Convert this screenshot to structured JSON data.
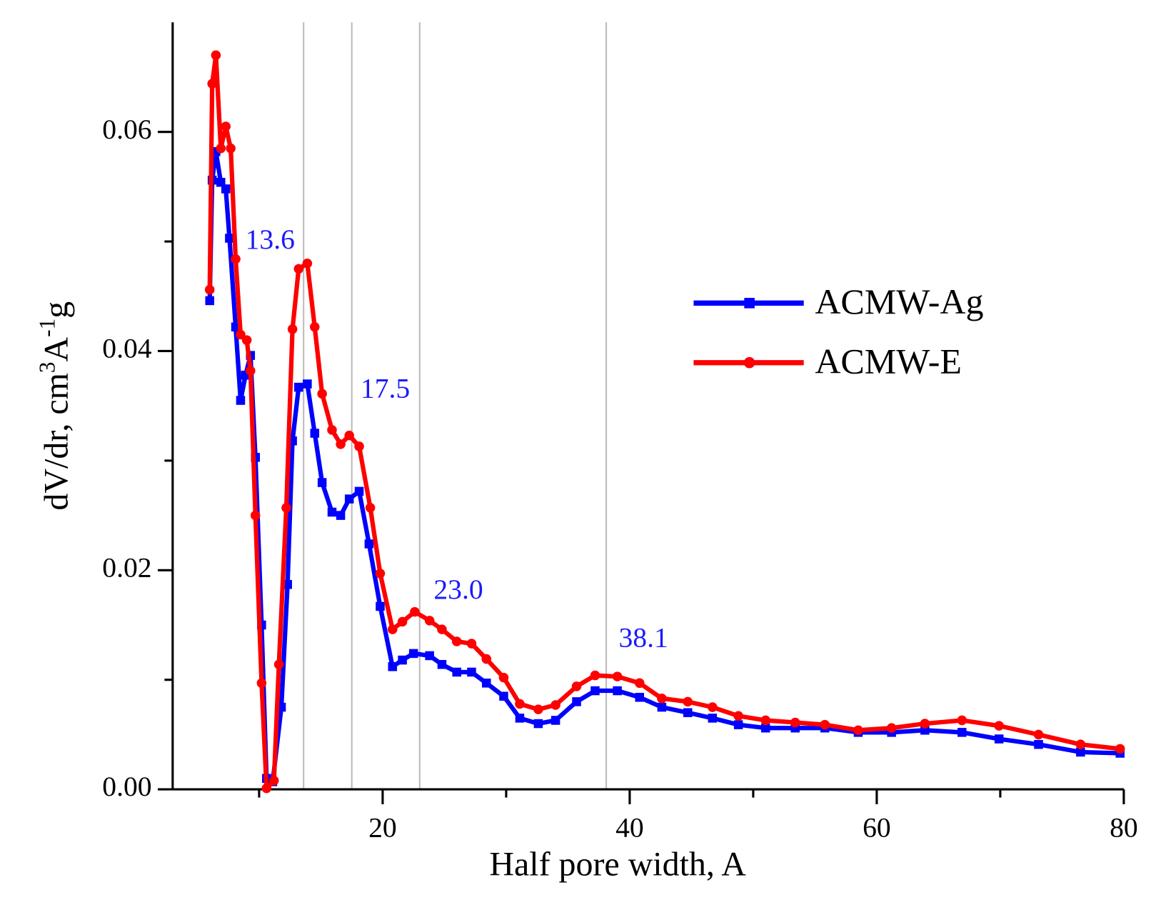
{
  "chart_data": {
    "type": "line",
    "xlabel": "Half pore width, A",
    "ylabel": [
      "dV/dr, cm",
      "3",
      "A",
      "-1",
      "g"
    ],
    "xlim": [
      3,
      80
    ],
    "ylim": [
      0,
      0.07
    ],
    "xticks": [
      20,
      40,
      60,
      80
    ],
    "xminor": [
      10,
      30,
      50,
      70
    ],
    "yticks": [
      {
        "value": 0,
        "label": "0.00"
      },
      0.02,
      0.04,
      0.06
    ],
    "yminor": [
      0.01,
      0.03,
      0.05
    ],
    "vlines": [
      {
        "value": 13.6,
        "label": "13.6"
      },
      {
        "value": 17.5,
        "label": "17.5"
      },
      {
        "value": 23.0,
        "label": "23.0"
      },
      {
        "value": 38.1,
        "label": "38.1"
      }
    ],
    "vline_color": "#bbbbbb",
    "annotation_color": "#1a1aff",
    "legend": "upper right",
    "series": [
      {
        "name": "ACMW-Ag",
        "color": "#0000ff",
        "marker": "square",
        "x": [
          6.0,
          6.2,
          6.5,
          6.9,
          7.3,
          7.6,
          8.1,
          8.5,
          8.9,
          9.3,
          9.7,
          10.2,
          10.6,
          11.1,
          11.8,
          12.3,
          12.7,
          13.2,
          13.9,
          14.5,
          15.1,
          15.9,
          16.6,
          17.3,
          18.1,
          18.9,
          19.8,
          20.8,
          21.6,
          22.5,
          23.8,
          24.8,
          26.0,
          27.2,
          28.4,
          29.8,
          31.1,
          32.6,
          34.0,
          35.7,
          37.2,
          39.0,
          40.8,
          42.6,
          44.7,
          46.7,
          48.8,
          51.0,
          53.4,
          55.8,
          58.5,
          61.2,
          63.9,
          66.9,
          69.9,
          73.1,
          76.5,
          79.7
        ],
        "values": [
          0.0446,
          0.0556,
          0.0582,
          0.0554,
          0.0548,
          0.0503,
          0.0422,
          0.0355,
          0.0378,
          0.0396,
          0.0303,
          0.015,
          0.001,
          0.0007,
          0.0075,
          0.0187,
          0.0318,
          0.0367,
          0.037,
          0.0325,
          0.028,
          0.0253,
          0.025,
          0.0265,
          0.0272,
          0.0224,
          0.0167,
          0.0112,
          0.0118,
          0.0124,
          0.0122,
          0.0114,
          0.0107,
          0.0107,
          0.0097,
          0.0085,
          0.0065,
          0.006,
          0.0063,
          0.008,
          0.009,
          0.009,
          0.0084,
          0.0075,
          0.007,
          0.0065,
          0.0059,
          0.0056,
          0.0056,
          0.0056,
          0.0052,
          0.0052,
          0.0054,
          0.0052,
          0.0046,
          0.0041,
          0.0034,
          0.0033
        ]
      },
      {
        "name": "ACMW-E",
        "color": "#ff0000",
        "marker": "circle",
        "x": [
          6.0,
          6.2,
          6.5,
          6.9,
          7.3,
          7.7,
          8.1,
          8.5,
          9.0,
          9.3,
          9.7,
          10.2,
          10.6,
          11.2,
          11.6,
          12.2,
          12.7,
          13.2,
          13.9,
          14.5,
          15.1,
          15.9,
          16.6,
          17.3,
          18.1,
          19.0,
          19.8,
          20.8,
          21.6,
          22.6,
          23.8,
          24.8,
          26.0,
          27.2,
          28.4,
          29.8,
          31.1,
          32.6,
          34.0,
          35.7,
          37.2,
          39.0,
          40.8,
          42.6,
          44.7,
          46.7,
          48.8,
          51.0,
          53.4,
          55.8,
          58.5,
          61.2,
          63.9,
          66.9,
          69.9,
          73.1,
          76.5,
          79.7
        ],
        "values": [
          0.0456,
          0.0644,
          0.067,
          0.0585,
          0.0605,
          0.0585,
          0.0484,
          0.0415,
          0.041,
          0.0382,
          0.025,
          0.0097,
          0.0001,
          0.0008,
          0.0114,
          0.0257,
          0.042,
          0.0475,
          0.048,
          0.0422,
          0.0361,
          0.0328,
          0.0315,
          0.0323,
          0.0313,
          0.0257,
          0.0197,
          0.0146,
          0.0153,
          0.0162,
          0.0154,
          0.0146,
          0.0135,
          0.0133,
          0.0119,
          0.0102,
          0.0078,
          0.0073,
          0.0077,
          0.0094,
          0.0104,
          0.0103,
          0.0097,
          0.0083,
          0.008,
          0.0075,
          0.0067,
          0.0063,
          0.0061,
          0.0059,
          0.0054,
          0.0056,
          0.006,
          0.0063,
          0.0058,
          0.005,
          0.0041,
          0.0037
        ]
      }
    ]
  }
}
